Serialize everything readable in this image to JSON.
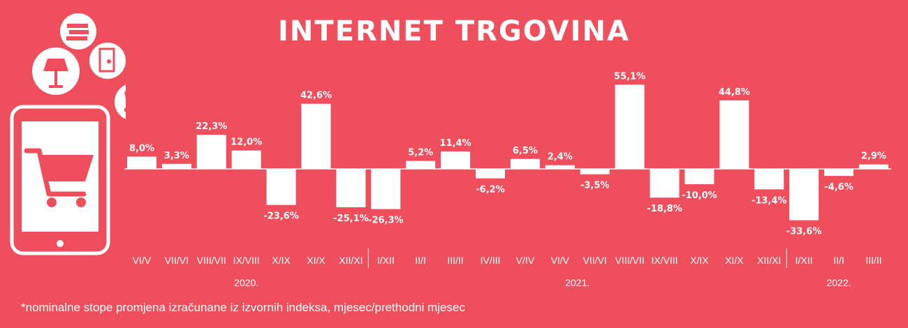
{
  "title": "INTERNET TRGOVINA",
  "footnote": "*nominalne stope promjena izračunane iz izvornih indeksa, mjesec/prethodni mjesec",
  "colors": {
    "background": "#ef4f5c",
    "bar": "#ffffff",
    "text": "#ffffff"
  },
  "icons": [
    "tablet-cart-icon",
    "lamp-icon",
    "books-icon",
    "fridge-icon",
    "clothes-icon"
  ],
  "chart_data": {
    "type": "bar",
    "categories": [
      "VI/V",
      "VII/VI",
      "VIII/VII",
      "IX/VIII",
      "X/IX",
      "XI/X",
      "XII/XI",
      "I/XII",
      "II/I",
      "III/II",
      "IV/III",
      "V/IV",
      "VI/V",
      "VII/VI",
      "VIII/VII",
      "IX/VIII",
      "X/IX",
      "XI/X",
      "XII/XI",
      "I/XII",
      "II/I",
      "III/II"
    ],
    "values": [
      8.0,
      3.3,
      22.3,
      12.0,
      -23.6,
      42.6,
      -25.1,
      -26.3,
      5.2,
      11.4,
      -6.2,
      6.5,
      2.4,
      -3.5,
      55.1,
      -18.8,
      -10.0,
      44.8,
      -13.4,
      -33.6,
      -4.6,
      2.9
    ],
    "value_labels": [
      "8,0%",
      "3,3%",
      "22,3%",
      "12,0%",
      "-23,6%",
      "42,6%",
      "-25,1%",
      "-26,3%",
      "5,2%",
      "11,4%",
      "-6,2%",
      "6,5%",
      "2,4%",
      "-3,5%",
      "55,1%",
      "-18,8%",
      "-10,0%",
      "44,8%",
      "-13,4%",
      "-33,6%",
      "-4,6%",
      "2,9%"
    ],
    "year_groups": [
      {
        "label": "2020.",
        "start": 0,
        "end": 6
      },
      {
        "label": "2021.",
        "start": 7,
        "end": 18
      },
      {
        "label": "2022.",
        "start": 19,
        "end": 21
      }
    ],
    "xlabel": "",
    "ylabel": "",
    "grid": false
  }
}
